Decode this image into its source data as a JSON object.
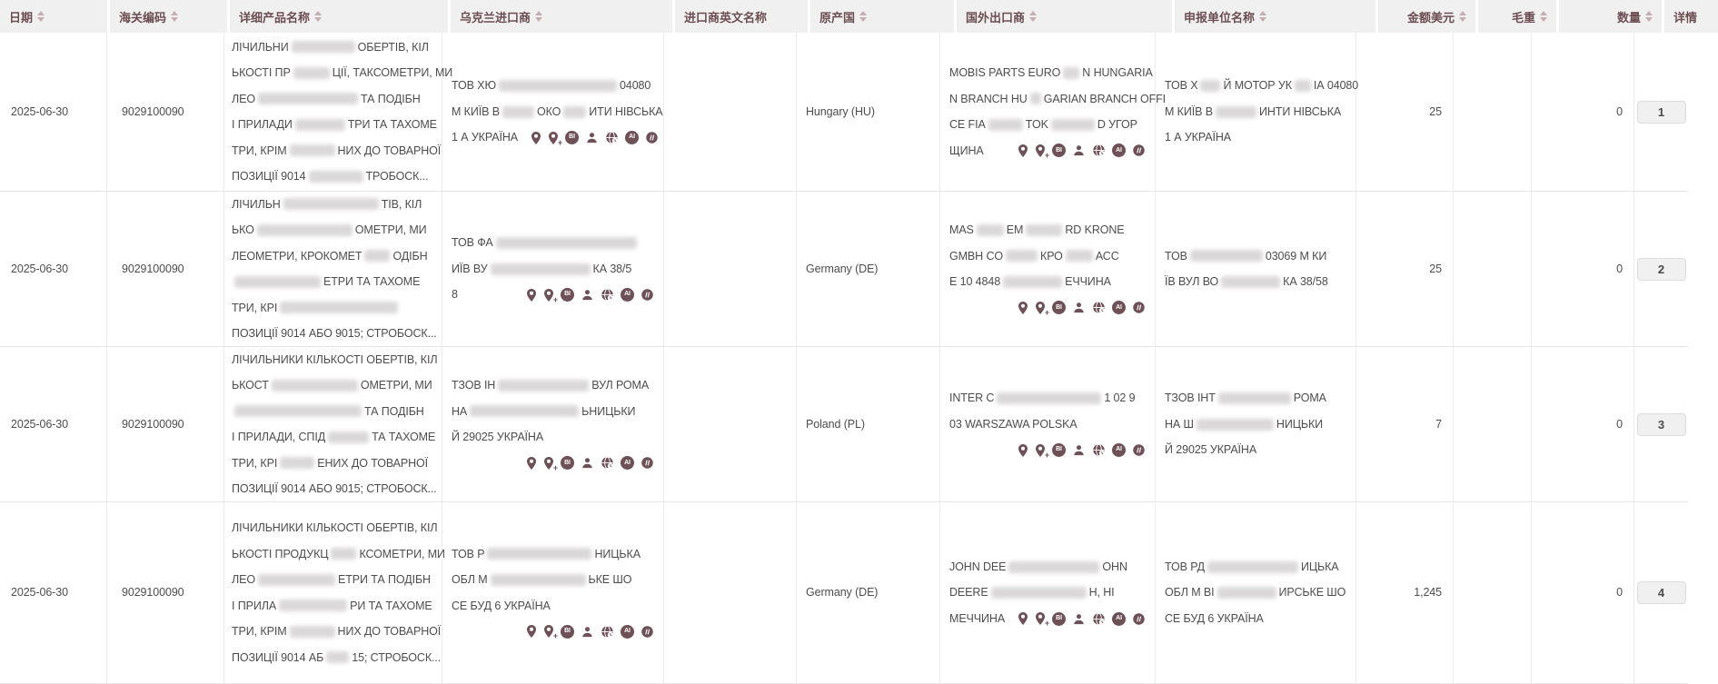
{
  "colors": {
    "accent": "#6b4d52",
    "icon": "#6e5157",
    "header_bg": "#f1f0f0",
    "row_border": "#e8e6e6",
    "text": "#4f4c4c",
    "blur_patch": "#d6d4d4",
    "badge_bg": "#f1f0f0"
  },
  "header": {
    "columns": [
      {
        "label": "日期",
        "sortable": true,
        "align": "left"
      },
      {
        "label": "海关编码",
        "sortable": true,
        "align": "left"
      },
      {
        "label": "详细产品名称",
        "sortable": true,
        "align": "left"
      },
      {
        "label": "乌克兰进口商",
        "sortable": true,
        "align": "left"
      },
      {
        "label": "进口商英文名称",
        "sortable": false,
        "align": "left"
      },
      {
        "label": "原产国",
        "sortable": true,
        "align": "left"
      },
      {
        "label": "国外出口商",
        "sortable": true,
        "align": "left"
      },
      {
        "label": "申报单位名称",
        "sortable": true,
        "align": "left"
      },
      {
        "label": "金额美元",
        "sortable": true,
        "align": "right"
      },
      {
        "label": "毛重",
        "sortable": true,
        "align": "right"
      },
      {
        "label": "数量",
        "sortable": true,
        "align": "right"
      },
      {
        "label": "详情",
        "sortable": false,
        "align": "left"
      }
    ]
  },
  "icon_set": [
    "location-pin-icon",
    "pin-plus-icon",
    "bi-badge-icon",
    "person-icon",
    "globe-clock-icon",
    "ai-badge-icon",
    "compass-slash-icon"
  ],
  "icon_badge_labels": {
    "bi": "BI",
    "ai": "AI"
  },
  "rows": [
    {
      "date": "2025-06-30",
      "hs_code": "9029100090",
      "product_lines": [
        [
          {
            "t": "ЛІЧИЛЬНИ"
          },
          {
            "b": 70
          },
          {
            "t": "ОБЕРТІВ, КІЛ"
          }
        ],
        [
          {
            "t": "ЬКОСТІ ПР"
          },
          {
            "b": 40
          },
          {
            "t": "ЦІЇ, ТАКСОМЕТРИ, МИ"
          }
        ],
        [
          {
            "t": "ЛЕО"
          },
          {
            "b": 110
          },
          {
            "t": "ТА ПОДІБН"
          }
        ],
        [
          {
            "t": "І ПРИЛАДИ"
          },
          {
            "b": 55
          },
          {
            "t": "ТРИ ТА ТАХОМЕ"
          }
        ],
        [
          {
            "t": "ТРИ, КРІМ"
          },
          {
            "b": 50
          },
          {
            "t": "НИХ ДО ТОВАРНОЇ"
          }
        ],
        [
          {
            "t": "ПОЗИЦІЇ 9014"
          },
          {
            "b": 60
          },
          {
            "t": "ТРОБОСК..."
          }
        ]
      ],
      "importer_lines": [
        [
          {
            "t": "ТОВ ХЮ"
          },
          {
            "b": 130
          },
          {
            "t": " 04080"
          }
        ],
        [
          {
            "t": "М КИЇВ В"
          },
          {
            "b": 35
          },
          {
            "t": "ОКО"
          },
          {
            "b": 25
          },
          {
            "t": "ИТИ НІВСЬКА"
          }
        ],
        [
          {
            "t": "1 А УКРАЇНА"
          },
          {
            "icons": true
          }
        ]
      ],
      "importer_en": "",
      "origin": "Hungary (HU)",
      "exporter_lines": [
        [
          {
            "t": "MOBIS PARTS EURO"
          },
          {
            "b": 18
          },
          {
            "t": "N HUNGARIA"
          }
        ],
        [
          {
            "t": "N BRANCH HU"
          },
          {
            "b": 12
          },
          {
            "t": "GARIAN BRANCH OFFI"
          }
        ],
        [
          {
            "t": "CE FIA"
          },
          {
            "b": 38
          },
          {
            "t": "TOK"
          },
          {
            "b": 48
          },
          {
            "t": "D УГОР"
          }
        ],
        [
          {
            "t": "ЩИНА"
          },
          {
            "icons": true
          }
        ]
      ],
      "declarant_lines": [
        [
          {
            "t": "ТОВ Х"
          },
          {
            "b": 22
          },
          {
            "t": "Й МОТОР УК"
          },
          {
            "b": 18
          },
          {
            "t": "ІА 04080"
          }
        ],
        [
          {
            "t": "М КИЇВ В"
          },
          {
            "b": 45
          },
          {
            "t": "ИНТИ НІВСЬКА"
          }
        ],
        [
          {
            "t": "1 А УКРАЇНА"
          }
        ]
      ],
      "amount_usd": "25",
      "gross_weight": "",
      "quantity": "0",
      "detail": "1"
    },
    {
      "date": "2025-06-30",
      "hs_code": "9029100090",
      "product_lines": [
        [
          {
            "t": "ЛІЧИЛЬН"
          },
          {
            "b": 105
          },
          {
            "t": "ТІВ, КІЛ"
          }
        ],
        [
          {
            "t": "ЬКО"
          },
          {
            "b": 105
          },
          {
            "t": "ОМЕТРИ, МИ"
          }
        ],
        [
          {
            "t": "ЛЕОМЕТРИ, КРОКОМЕТ"
          },
          {
            "b": 28
          },
          {
            "t": "ОДІБН"
          }
        ],
        [
          {
            "b": 95
          },
          {
            "t": "ЕТРИ ТА ТАХОМЕ"
          }
        ],
        [
          {
            "t": "ТРИ, КРІ"
          },
          {
            "b": 130
          }
        ],
        [
          {
            "t": "ПОЗИЦІЇ 9014 АБО 9015; СТРОБОСК..."
          }
        ]
      ],
      "importer_lines": [
        [
          {
            "t": "ТОВ ФА"
          },
          {
            "b": 155
          }
        ],
        [
          {
            "t": "ИЇВ ВУ"
          },
          {
            "b": 110
          },
          {
            "t": "КА 38/5"
          }
        ],
        [
          {
            "t": "8"
          },
          {
            "icons": true
          }
        ]
      ],
      "importer_en": "",
      "origin": "Germany (DE)",
      "exporter_lines": [
        [
          {
            "t": "MAS"
          },
          {
            "b": 30
          },
          {
            "t": "ЕМ"
          },
          {
            "b": 40
          },
          {
            "t": "RD KRONE"
          }
        ],
        [
          {
            "t": "GMBH CO"
          },
          {
            "b": 35
          },
          {
            "t": "КРО"
          },
          {
            "b": 30
          },
          {
            "t": "АСС"
          }
        ],
        [
          {
            "t": "Е 10 4848"
          },
          {
            "b": 65
          },
          {
            "t": "ЕЧЧИНА"
          }
        ],
        [
          {
            "icons": true
          }
        ]
      ],
      "declarant_lines": [
        [
          {
            "t": "ТОВ "
          },
          {
            "b": 80
          },
          {
            "t": " 03069 М КИ"
          }
        ],
        [
          {
            "t": "ЇВ ВУЛ ВО"
          },
          {
            "b": 65
          },
          {
            "t": "КА 38/58"
          }
        ]
      ],
      "amount_usd": "25",
      "gross_weight": "",
      "quantity": "0",
      "detail": "2"
    },
    {
      "date": "2025-06-30",
      "hs_code": "9029100090",
      "product_lines": [
        [
          {
            "t": "ЛІЧИЛЬНИКИ КІЛЬКОСТІ ОБЕРТІВ, КІЛ"
          }
        ],
        [
          {
            "t": "ЬКОСТ"
          },
          {
            "b": 95
          },
          {
            "t": "ОМЕТРИ, МИ"
          }
        ],
        [
          {
            "b": 140
          },
          {
            "t": "ТА ПОДІБН"
          }
        ],
        [
          {
            "t": "І ПРИЛАДИ, СПІД"
          },
          {
            "b": 45
          },
          {
            "t": "ТА ТАХОМЕ"
          }
        ],
        [
          {
            "t": "ТРИ, КРІ"
          },
          {
            "b": 38
          },
          {
            "t": "ЕНИХ ДО ТОВАРНОЇ"
          }
        ],
        [
          {
            "t": "ПОЗИЦІЇ 9014 АБО 9015; СТРОБОСК..."
          }
        ]
      ],
      "importer_lines": [
        [
          {
            "t": "ТЗОВ ІН"
          },
          {
            "b": 100
          },
          {
            "t": "ВУЛ РОМА"
          }
        ],
        [
          {
            "t": "НА"
          },
          {
            "b": 120
          },
          {
            "t": "ЬНИЦЬКИ"
          }
        ],
        [
          {
            "t": "Й 29025 УКРАЇНА"
          }
        ],
        [
          {
            "icons": true
          }
        ]
      ],
      "importer_en": "",
      "origin": "Poland (PL)",
      "exporter_lines": [
        [
          {
            "t": "INTER C"
          },
          {
            "b": 115
          },
          {
            "t": "1 02 9"
          }
        ],
        [
          {
            "t": "03 WARSZAWA POLSKA"
          }
        ],
        [
          {
            "icons": true
          }
        ]
      ],
      "declarant_lines": [
        [
          {
            "t": "ТЗОВ ІНТ"
          },
          {
            "b": 80
          },
          {
            "t": "РОМА"
          }
        ],
        [
          {
            "t": "НА Ш"
          },
          {
            "b": 85
          },
          {
            "t": "НИЦЬКИ"
          }
        ],
        [
          {
            "t": "Й 29025 УКРАЇНА"
          }
        ]
      ],
      "amount_usd": "7",
      "gross_weight": "",
      "quantity": "0",
      "detail": "3"
    },
    {
      "date": "2025-06-30",
      "hs_code": "9029100090",
      "product_lines": [
        [
          {
            "t": "ЛІЧИЛЬНИКИ КІЛЬКОСТІ ОБЕРТІВ, КІЛ"
          }
        ],
        [
          {
            "t": "ЬКОСТІ ПРОДУКЦ"
          },
          {
            "b": 28
          },
          {
            "t": "КСОМЕТРИ, МИ"
          }
        ],
        [
          {
            "t": "ЛЕО"
          },
          {
            "b": 85
          },
          {
            "t": "ЕТРИ ТА ПОДІБН"
          }
        ],
        [
          {
            "t": "І ПРИЛА"
          },
          {
            "b": 75
          },
          {
            "t": "РИ ТА ТАХОМЕ"
          }
        ],
        [
          {
            "t": "ТРИ, КРІМ"
          },
          {
            "b": 50
          },
          {
            "t": "НИХ ДО ТОВАРНОЇ"
          }
        ],
        [
          {
            "t": "ПОЗИЦІЇ 9014 АБ"
          },
          {
            "b": 25
          },
          {
            "t": "15; СТРОБОСК..."
          }
        ]
      ],
      "importer_lines": [
        [
          {
            "t": "ТОВ Р"
          },
          {
            "b": 115
          },
          {
            "t": "НИЦЬКА"
          }
        ],
        [
          {
            "t": "ОБЛ М "
          },
          {
            "b": 105
          },
          {
            "t": "ЬКЕ ШО"
          }
        ],
        [
          {
            "t": "СЕ БУД 6 УКРАЇНА"
          }
        ],
        [
          {
            "icons": true
          }
        ]
      ],
      "importer_en": "",
      "origin": "Germany (DE)",
      "exporter_lines": [
        [
          {
            "t": "JOHN DEE"
          },
          {
            "b": 100
          },
          {
            "t": "OHN"
          }
        ],
        [
          {
            "t": "DEERE "
          },
          {
            "b": 105
          },
          {
            "t": "Н, НІ"
          }
        ],
        [
          {
            "t": "МЕЧЧИНА"
          },
          {
            "icons": true
          }
        ]
      ],
      "declarant_lines": [
        [
          {
            "t": "ТОВ РД"
          },
          {
            "b": 100
          },
          {
            "t": "ИЦЬКА"
          }
        ],
        [
          {
            "t": "ОБЛ М ВІ"
          },
          {
            "b": 65
          },
          {
            "t": "ИРСЬКЕ ШО"
          }
        ],
        [
          {
            "t": "СЕ БУД 6 УКРАЇНА"
          }
        ]
      ],
      "amount_usd": "1,245",
      "gross_weight": "",
      "quantity": "0",
      "detail": "4"
    }
  ]
}
